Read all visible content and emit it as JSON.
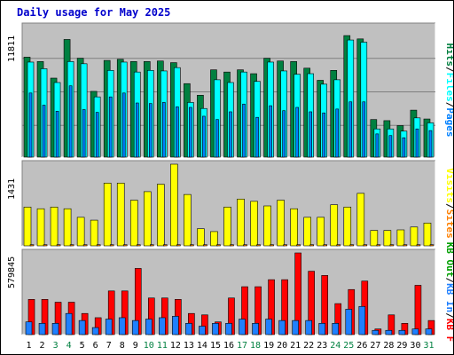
{
  "title": "Daily usage for May 2025",
  "colors": {
    "background": "#ffffff",
    "panel": "#c0c0c0",
    "gridline": "#7f7f7f",
    "hits": "#008040",
    "files": "#00ffff",
    "pages": "#0080ff",
    "visits": "#ffff00",
    "sites": "#ff8000",
    "kb_in": "#2080ff",
    "kb_out": "#00a000",
    "kb_f": "#ff0000",
    "weekday_label": "#000000",
    "weekend_label": "#008040",
    "title": "#0000cc"
  },
  "chart_data": [
    {
      "type": "bar",
      "panel": "top",
      "ymax_label": "11811",
      "ylim": [
        0,
        11811
      ],
      "legend": [
        {
          "label": "Pages",
          "key": "pages"
        },
        {
          "label": "Files",
          "key": "files"
        },
        {
          "label": "Hits",
          "key": "hits"
        }
      ],
      "categories": [
        "1",
        "2",
        "3",
        "4",
        "5",
        "6",
        "7",
        "8",
        "9",
        "10",
        "11",
        "12",
        "13",
        "14",
        "15",
        "16",
        "17",
        "18",
        "19",
        "20",
        "21",
        "22",
        "23",
        "24",
        "25",
        "26",
        "27",
        "28",
        "29",
        "30",
        "31"
      ],
      "weekend_days": [
        "3",
        "4",
        "10",
        "11",
        "17",
        "18",
        "24",
        "25",
        "31"
      ],
      "series": [
        {
          "name": "Hits",
          "key": "hits",
          "values": [
            9050,
            8650,
            7150,
            10650,
            8950,
            5950,
            8750,
            8850,
            8650,
            8650,
            8700,
            8550,
            6650,
            5600,
            7900,
            7700,
            7900,
            7550,
            8950,
            8700,
            8650,
            8050,
            6950,
            7850,
            11000,
            10700,
            3400,
            3300,
            2850,
            4250,
            3450
          ]
        },
        {
          "name": "Files",
          "key": "files",
          "values": [
            8600,
            8000,
            6750,
            8650,
            8450,
            5450,
            7850,
            8600,
            7700,
            7850,
            7800,
            8100,
            4950,
            4400,
            7000,
            6750,
            7700,
            6850,
            8600,
            7800,
            7500,
            7550,
            6600,
            7000,
            10600,
            10400,
            2550,
            2550,
            2350,
            3550,
            3100
          ]
        },
        {
          "name": "Pages",
          "key": "pages",
          "values": [
            5800,
            4700,
            4150,
            6450,
            4300,
            4050,
            5450,
            5800,
            4900,
            4850,
            4950,
            4550,
            4500,
            3700,
            3400,
            4100,
            4800,
            3600,
            4650,
            4200,
            4500,
            4100,
            4000,
            4350,
            5000,
            5000,
            2100,
            1950,
            1750,
            2550,
            2400
          ]
        }
      ]
    },
    {
      "type": "bar",
      "panel": "middle",
      "ymax_label": "1431",
      "ylim": [
        0,
        1431
      ],
      "legend": [
        {
          "label": "Sites",
          "key": "sites"
        },
        {
          "label": "Visits",
          "key": "visits"
        }
      ],
      "categories": [
        "1",
        "2",
        "3",
        "4",
        "5",
        "6",
        "7",
        "8",
        "9",
        "10",
        "11",
        "12",
        "13",
        "14",
        "15",
        "16",
        "17",
        "18",
        "19",
        "20",
        "21",
        "22",
        "23",
        "24",
        "25",
        "26",
        "27",
        "28",
        "29",
        "30",
        "31"
      ],
      "series": [
        {
          "name": "Visits",
          "key": "visits",
          "values": [
            680,
            650,
            680,
            650,
            500,
            450,
            1100,
            1100,
            800,
            950,
            1080,
            1431,
            900,
            300,
            250,
            680,
            820,
            780,
            700,
            800,
            650,
            500,
            500,
            720,
            680,
            920,
            270,
            270,
            280,
            330,
            400
          ]
        },
        {
          "name": "Sites",
          "key": "sites",
          "values": [
            20,
            20,
            20,
            20,
            20,
            20,
            20,
            20,
            20,
            20,
            20,
            20,
            20,
            20,
            20,
            20,
            20,
            20,
            20,
            20,
            20,
            20,
            20,
            20,
            20,
            20,
            20,
            20,
            20,
            20,
            20
          ]
        }
      ]
    },
    {
      "type": "bar",
      "panel": "bottom",
      "ymax_label": "579845",
      "ylim": [
        0,
        579845
      ],
      "legend": [
        {
          "label": "KB F",
          "key": "kb_f"
        },
        {
          "label": "KB In",
          "key": "kb_in"
        },
        {
          "label": "KB Out",
          "key": "kb_out"
        }
      ],
      "categories": [
        "1",
        "2",
        "3",
        "4",
        "5",
        "6",
        "7",
        "8",
        "9",
        "10",
        "11",
        "12",
        "13",
        "14",
        "15",
        "16",
        "17",
        "18",
        "19",
        "20",
        "21",
        "22",
        "23",
        "24",
        "25",
        "26",
        "27",
        "28",
        "29",
        "30",
        "31"
      ],
      "series": [
        {
          "name": "KB F",
          "key": "kb_f",
          "values": [
            250000,
            250000,
            230000,
            230000,
            150000,
            120000,
            310000,
            310000,
            470000,
            260000,
            260000,
            250000,
            150000,
            140000,
            90000,
            260000,
            340000,
            340000,
            390000,
            390000,
            579845,
            450000,
            420000,
            220000,
            320000,
            380000,
            40000,
            140000,
            80000,
            350000,
            100000
          ]
        },
        {
          "name": "KB In",
          "key": "kb_in",
          "values": [
            90000,
            80000,
            80000,
            150000,
            100000,
            50000,
            110000,
            120000,
            100000,
            110000,
            120000,
            130000,
            80000,
            60000,
            80000,
            80000,
            110000,
            80000,
            110000,
            100000,
            100000,
            100000,
            80000,
            80000,
            180000,
            200000,
            30000,
            30000,
            30000,
            40000,
            40000
          ]
        },
        {
          "name": "KB Out",
          "key": "kb_out",
          "values": [
            0,
            0,
            0,
            0,
            0,
            0,
            0,
            0,
            0,
            0,
            0,
            0,
            0,
            0,
            0,
            0,
            0,
            0,
            0,
            0,
            0,
            0,
            0,
            0,
            0,
            0,
            0,
            0,
            0,
            0,
            0
          ]
        }
      ]
    }
  ]
}
